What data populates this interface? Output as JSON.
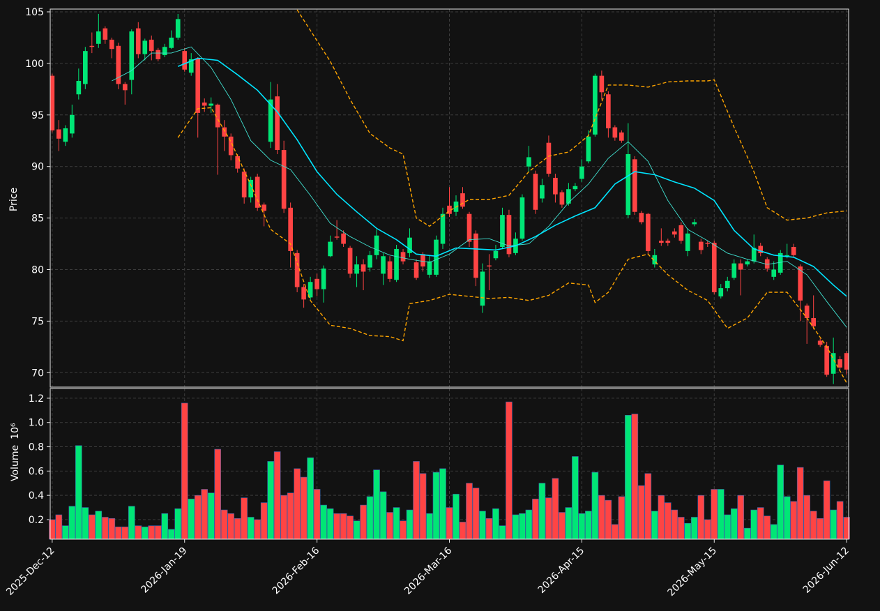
{
  "chart_data": [
    {
      "type": "candlestick",
      "ylabel": "Price",
      "up_color": "#00e676",
      "down_color": "#ff4444",
      "xlim": [
        -0.3,
        120.3
      ],
      "ylim": [
        68.6,
        105.27
      ],
      "yticks": [
        70,
        75,
        80,
        85,
        90,
        95,
        100,
        105
      ],
      "grid": true,
      "open": [
        98.8,
        93.6,
        92.4,
        93.2,
        97,
        98,
        101.7,
        101.9,
        103.4,
        102.3,
        101.7,
        98,
        98.4,
        103.4,
        100.9,
        102.3,
        101.3,
        100.8,
        101.5,
        102.5,
        101.2,
        99.1,
        100.5,
        96.2,
        95.9,
        96,
        93.8,
        92.9,
        91,
        89.5,
        87,
        89,
        86.3,
        92.4,
        96.8,
        91.6,
        86,
        81.6,
        78.3,
        77.3,
        79.1,
        78.1,
        81.3,
        83.2,
        83.5,
        82.1,
        79.6,
        80.5,
        80.2,
        81.4,
        79.6,
        80.8,
        79,
        81.7,
        81.6,
        80.7,
        81.5,
        79.5,
        79.5,
        82.5,
        86.2,
        85.6,
        87.4,
        85.4,
        83.5,
        76.5,
        80.4,
        81.1,
        82.2,
        85.3,
        81.6,
        83,
        90,
        89.3,
        86.9,
        92.3,
        88.9,
        87.5,
        86.4,
        87.8,
        88.8,
        90.5,
        93.1,
        98.8,
        97,
        93.8,
        93.3,
        85.3,
        90.7,
        85.5,
        85.4,
        80.5,
        82.8,
        82.8,
        83.7,
        84.3,
        81.8,
        84.4,
        82.7,
        82.6,
        82.6,
        77.4,
        78.2,
        79.2,
        80.6,
        80.5,
        80.8,
        82.3,
        81,
        79.3,
        79.7,
        81.3,
        82.2,
        80.3,
        76.5,
        75.3,
        73.1,
        72.6,
        69.9,
        71.3,
        71.9
      ],
      "high": [
        99,
        94.5,
        94,
        96,
        99.5,
        101.6,
        103,
        104.8,
        103.6,
        102.5,
        102,
        98.2,
        103.3,
        104,
        102.4,
        102.7,
        101.5,
        101.9,
        103.2,
        104.8,
        101.5,
        101,
        100.6,
        96.6,
        96.7,
        96.1,
        94.5,
        93.2,
        91.2,
        89.8,
        89,
        89.3,
        86.5,
        98.2,
        98,
        92.5,
        86.5,
        81.9,
        78.6,
        79.3,
        79.6,
        80.4,
        83.3,
        84.8,
        83.8,
        82.3,
        81.3,
        81,
        81.8,
        83.9,
        81.6,
        81.3,
        82.4,
        82,
        84,
        81,
        81.7,
        81.4,
        83.3,
        86,
        88,
        87.2,
        88,
        85.6,
        83.8,
        80.6,
        81.5,
        82.4,
        86,
        85.8,
        83.6,
        87.3,
        92,
        89.6,
        88.8,
        93,
        89.3,
        87.7,
        88.4,
        88.4,
        90.7,
        93.5,
        99,
        99.3,
        97.3,
        94,
        93.5,
        94.2,
        91,
        85.7,
        85.5,
        82,
        84,
        83,
        84,
        84.6,
        84,
        84.9,
        83,
        82.8,
        82.8,
        78.6,
        79.3,
        81,
        81,
        81,
        83.4,
        82.6,
        81.2,
        80.8,
        81.9,
        82.5,
        82.5,
        80.5,
        76.7,
        77.5,
        73.3,
        73,
        73.4,
        71.6,
        72.1
      ],
      "low": [
        93.3,
        91.5,
        92,
        92.8,
        96.5,
        97.5,
        101,
        101.5,
        101.9,
        100.5,
        97.5,
        96,
        97,
        100.5,
        100.3,
        100.3,
        100.2,
        100.6,
        101.4,
        102.3,
        99.2,
        98.8,
        92.8,
        95.3,
        95.2,
        89.2,
        91.5,
        90.6,
        89.4,
        86.4,
        86.5,
        85.7,
        84.2,
        91.8,
        91.2,
        85.5,
        80.2,
        77.8,
        76.3,
        77,
        77.4,
        76.8,
        81.2,
        82.9,
        82.2,
        79.2,
        78.3,
        78,
        79.8,
        81,
        78.5,
        78.8,
        78.8,
        80.5,
        81.2,
        79,
        79.8,
        79.2,
        79.3,
        82,
        85.1,
        85.2,
        85.9,
        82.2,
        78.4,
        75.8,
        78,
        80.9,
        82,
        81.2,
        81.4,
        82.8,
        89.5,
        85.4,
        86.5,
        89,
        86.5,
        86,
        86.2,
        87.6,
        88.5,
        90.3,
        92.9,
        96.5,
        92.8,
        92.5,
        92.3,
        85,
        85.3,
        84.4,
        81.5,
        80.2,
        82.3,
        82.3,
        83.1,
        82.5,
        81.3,
        84.2,
        81.5,
        82.2,
        77.6,
        77.2,
        77.9,
        79,
        77.5,
        80.3,
        80.6,
        81.3,
        79.8,
        79,
        79.5,
        81.1,
        81.2,
        75,
        72.8,
        74.2,
        72.5,
        69.6,
        68.9,
        70.3,
        69.8
      ],
      "close": [
        93.5,
        92.7,
        93.7,
        95,
        98.3,
        101.2,
        101.6,
        103.1,
        102.3,
        101.4,
        98,
        97.4,
        103.1,
        100.9,
        102.2,
        101.2,
        100.4,
        101.6,
        102.5,
        104.3,
        99.4,
        100.4,
        95.2,
        95.9,
        96.1,
        93.8,
        92.9,
        91.1,
        89.8,
        87,
        88.7,
        86,
        85.7,
        96.5,
        91.6,
        85.9,
        81.8,
        78.3,
        77.1,
        78.8,
        78.1,
        80.1,
        82.7,
        83.1,
        82.5,
        79.6,
        80.5,
        79.8,
        81.4,
        83.3,
        81.3,
        79.1,
        82,
        80.8,
        83.1,
        79.2,
        80.3,
        80.8,
        82.9,
        85.4,
        85.4,
        86.6,
        86.1,
        82.7,
        79.2,
        79.8,
        80.3,
        81.8,
        85.3,
        81.5,
        83,
        87,
        90.9,
        85.8,
        88.2,
        89.3,
        87.3,
        86.3,
        87.8,
        88.1,
        90,
        92.9,
        98.8,
        97.2,
        93.7,
        92.8,
        92.5,
        91.2,
        85.6,
        84.6,
        81.8,
        81.4,
        82.6,
        82.6,
        83.4,
        82.8,
        83.5,
        84.6,
        81.9,
        82.5,
        77.8,
        78.2,
        78.9,
        80.6,
        80,
        80.8,
        82.1,
        81.6,
        80.1,
        80,
        81.6,
        81.4,
        81.4,
        77,
        75.3,
        74.5,
        72.7,
        69.8,
        71.9,
        70.5,
        70.3
      ],
      "lines": [
        {
          "color": "#40e0d0",
          "style": "thin",
          "x": [
            9,
            12,
            15,
            18,
            21,
            24,
            27,
            30,
            33,
            36,
            39,
            42,
            45,
            48,
            51,
            54,
            57,
            60,
            63,
            66,
            69,
            72,
            75,
            78,
            81,
            84,
            87,
            90,
            93,
            96,
            99,
            102,
            105,
            108,
            111,
            114,
            117,
            120
          ],
          "values": [
            98.3,
            99.3,
            101,
            101,
            101.6,
            99.6,
            96.5,
            92.5,
            90.6,
            89.7,
            87.2,
            84.5,
            83.2,
            82.2,
            81.4,
            81,
            80.7,
            81.5,
            82.9,
            83,
            82.3,
            82.5,
            84.2,
            86.5,
            88.3,
            90.8,
            92.4,
            90.5,
            86.7,
            83.9,
            82.8,
            81.6,
            81,
            80.5,
            80.8,
            79.5,
            76.9,
            74.4
          ]
        },
        {
          "color": "#00e5ff",
          "style": "thick",
          "x": [
            19,
            22,
            25,
            28,
            31,
            34,
            37,
            40,
            43,
            46,
            49,
            52,
            55,
            58,
            61,
            64,
            67,
            70,
            73,
            76,
            79,
            82,
            85,
            88,
            91,
            94,
            97,
            100,
            103,
            106,
            109,
            112,
            115,
            118,
            120
          ],
          "values": [
            99.7,
            100.5,
            100.3,
            98.9,
            97.4,
            95.3,
            92.6,
            89.5,
            87.3,
            85.6,
            84,
            82.9,
            81.5,
            81.3,
            82.1,
            82,
            81.9,
            82.3,
            83.2,
            84.3,
            85.2,
            86,
            88.3,
            89.5,
            89.2,
            88.5,
            87.9,
            86.7,
            83.8,
            82,
            81.4,
            81.2,
            80.3,
            78.5,
            77.4
          ]
        },
        {
          "color": "#ffa500",
          "style": "dashed",
          "x": [
            19,
            22,
            24,
            27,
            30,
            33,
            36,
            39,
            42,
            45,
            48,
            51,
            53,
            54,
            57,
            60,
            63,
            66,
            69,
            72,
            75,
            78,
            81,
            82,
            84,
            87,
            90,
            93,
            96,
            99,
            102,
            105,
            108,
            111,
            114,
            117,
            120
          ],
          "values": [
            92.8,
            95.6,
            95.7,
            92.4,
            88.2,
            83.9,
            82.5,
            77,
            74.6,
            74.3,
            73.6,
            73.5,
            73.1,
            76.7,
            77,
            77.6,
            77.4,
            77.2,
            77.3,
            77,
            77.5,
            78.7,
            78.5,
            76.8,
            77.8,
            81,
            81.5,
            79.5,
            78,
            77,
            74.3,
            75.3,
            77.8,
            77.8,
            75.3,
            72.5,
            69
          ]
        },
        {
          "color": "#ffa500",
          "style": "dashed",
          "x": [
            37,
            39,
            42,
            45,
            48,
            51,
            53,
            55,
            57,
            60,
            63,
            66,
            69,
            72,
            75,
            78,
            81,
            84,
            87,
            90,
            93,
            96,
            99,
            100,
            103,
            106,
            108,
            111,
            114,
            117,
            120
          ],
          "values": [
            105.2,
            103.2,
            100.2,
            96.5,
            93.2,
            91.8,
            91.2,
            85,
            84.2,
            85.7,
            86.8,
            86.8,
            87.2,
            89.5,
            91,
            91.4,
            93,
            97.9,
            97.9,
            97.7,
            98.2,
            98.3,
            98.3,
            98.4,
            93.8,
            89.5,
            86,
            84.8,
            85,
            85.5,
            85.7
          ]
        }
      ]
    },
    {
      "type": "bar",
      "ylabel": "Volume",
      "scale_label": "10⁶",
      "xlim": [
        -0.3,
        120.3
      ],
      "ylim": [
        0.039,
        1.28
      ],
      "yticks": [
        0.2,
        0.4,
        0.6,
        0.8,
        {
          "value": 1,
          "label": "1.0"
        },
        1.2
      ],
      "xticks": [
        {
          "value": 0,
          "label": "2025-Dec-12"
        },
        {
          "value": 20,
          "label": "2026-Jan-19"
        },
        {
          "value": 40,
          "label": "2026-Feb-16"
        },
        {
          "value": 60,
          "label": "2026-Mar-16"
        },
        {
          "value": 80,
          "label": "2026-Apr-15"
        },
        {
          "value": 100,
          "label": "2026-May-15"
        },
        {
          "value": 120,
          "label": "2026-Jun-12"
        }
      ],
      "grid": true,
      "values": [
        0.2,
        0.24,
        0.15,
        0.31,
        0.81,
        0.3,
        0.24,
        0.27,
        0.22,
        0.21,
        0.14,
        0.14,
        0.31,
        0.15,
        0.14,
        0.15,
        0.15,
        0.25,
        0.12,
        0.29,
        1.16,
        0.37,
        0.4,
        0.45,
        0.42,
        0.78,
        0.28,
        0.25,
        0.21,
        0.38,
        0.22,
        0.2,
        0.34,
        0.68,
        0.76,
        0.4,
        0.42,
        0.62,
        0.55,
        0.71,
        0.45,
        0.32,
        0.29,
        0.25,
        0.25,
        0.23,
        0.19,
        0.32,
        0.39,
        0.61,
        0.43,
        0.26,
        0.3,
        0.19,
        0.28,
        0.68,
        0.58,
        0.25,
        0.59,
        0.62,
        0.3,
        0.41,
        0.18,
        0.5,
        0.46,
        0.27,
        0.21,
        0.29,
        0.15,
        1.17,
        0.24,
        0.25,
        0.28,
        0.37,
        0.5,
        0.38,
        0.54,
        0.26,
        0.3,
        0.72,
        0.25,
        0.27,
        0.59,
        0.4,
        0.36,
        0.16,
        0.39,
        1.06,
        1.07,
        0.48,
        0.58,
        0.27,
        0.4,
        0.34,
        0.28,
        0.22,
        0.17,
        0.22,
        0.4,
        0.2,
        0.45,
        0.45,
        0.24,
        0.29,
        0.4,
        0.13,
        0.28,
        0.3,
        0.23,
        0.16,
        0.65,
        0.39,
        0.35,
        0.63,
        0.4,
        0.27,
        0.21,
        0.52,
        0.28,
        0.35,
        0.22
      ]
    }
  ]
}
